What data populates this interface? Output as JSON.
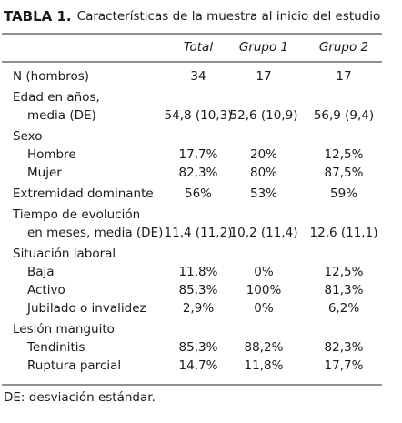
{
  "title": {
    "label": "TABLA 1.",
    "text": "Características de la muestra al inicio del estudio"
  },
  "table": {
    "columns": [
      "Total",
      "Grupo 1",
      "Grupo 2"
    ],
    "sections": [
      {
        "label": "N (hombros)",
        "values": [
          "34",
          "17",
          "17"
        ]
      },
      {
        "label": "Edad en años,",
        "items": [
          {
            "label": "media (DE)",
            "values": [
              "54,8 (10,3)",
              "52,6 (10,9)",
              "56,9 (9,4)"
            ]
          }
        ]
      },
      {
        "label": "Sexo",
        "items": [
          {
            "label": "Hombre",
            "values": [
              "17,7%",
              "20%",
              "12,5%"
            ]
          },
          {
            "label": "Mujer",
            "values": [
              "82,3%",
              "80%",
              "87,5%"
            ]
          }
        ]
      },
      {
        "label": "Extremidad dominante",
        "values": [
          "56%",
          "53%",
          "59%"
        ]
      },
      {
        "label": "Tiempo de evolución",
        "items": [
          {
            "label": "en meses, media (DE)",
            "values": [
              "11,4 (11,2)",
              "10,2 (11,4)",
              "12,6 (11,1)"
            ]
          }
        ]
      },
      {
        "label": "Situación laboral",
        "items": [
          {
            "label": "Baja",
            "values": [
              "11,8%",
              "0%",
              "12,5%"
            ]
          },
          {
            "label": "Activo",
            "values": [
              "85,3%",
              "100%",
              "81,3%"
            ]
          },
          {
            "label": "Jubilado o invalidez",
            "values": [
              "2,9%",
              "0%",
              "6,2%"
            ]
          }
        ]
      },
      {
        "label": "Lesión manguito",
        "items": [
          {
            "label": "Tendinitis",
            "values": [
              "85,3%",
              "88,2%",
              "82,3%"
            ]
          },
          {
            "label": "Ruptura parcial",
            "values": [
              "14,7%",
              "11,8%",
              "17,7%"
            ]
          }
        ]
      }
    ]
  },
  "footnote": "DE: desviación estándar."
}
